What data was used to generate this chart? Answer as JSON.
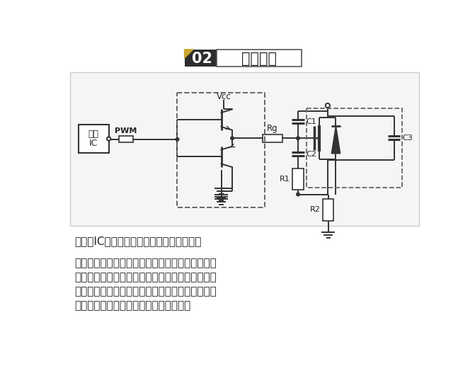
{
  "title_num": "02",
  "title_text": "推挽驱动",
  "title_num_bg": "#2d2d2d",
  "title_num_color": "#ffffff",
  "title_text_border": "#555555",
  "title_accent_color": "#c8a832",
  "bg_color": "#ffffff",
  "circuit_bg": "#f5f5f5",
  "text1": "当电源IC驱动能力不足时，可用推挽驱动。",
  "text2_line1": "这种驱动电路好处是提升电流提供能力，迅速完成",
  "text2_line2": "对于栅极输入电容电荷的充电过程。这种拓扑增加",
  "text2_line3": "了导通所需要的时间，但是减少了关断时间，开关",
  "text2_line4": "管能快速开通且避免上升沿的高频振荡。",
  "circuit_line_color": "#333333",
  "dashed_box_color": "#555555",
  "lw": 1.4
}
